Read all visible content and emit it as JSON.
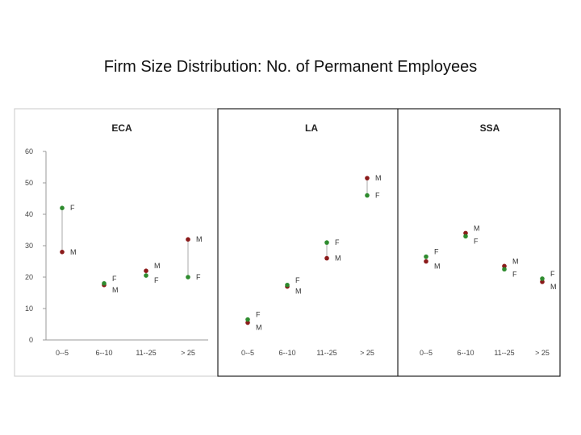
{
  "slide_title": "Firm Size Distribution: No. of Permanent Employees",
  "chart_data": {
    "type": "scatter",
    "ylim": [
      0,
      60
    ],
    "y_ticks": [
      0,
      10,
      20,
      30,
      40,
      50,
      60
    ],
    "categories": [
      "0--5",
      "6--10",
      "11--25",
      "> 25"
    ],
    "category_tick_labels": {
      "ECA": [
        "0--5",
        "6--10",
        "11--25",
        "> 25"
      ],
      "LA": [
        "0--5",
        "6--10",
        "11--25",
        "> 25"
      ],
      "SSA": [
        "0--5",
        "6--10",
        "11--25",
        "> 25"
      ]
    },
    "colors": {
      "M": "#8b1a1a",
      "F": "#2e8b2e"
    },
    "panels": [
      {
        "title": "ECA",
        "series": [
          {
            "name": "M",
            "values": [
              28,
              17.5,
              22,
              32
            ]
          },
          {
            "name": "F",
            "values": [
              42,
              18,
              20.5,
              20
            ]
          }
        ]
      },
      {
        "title": "LA",
        "series": [
          {
            "name": "M",
            "values": [
              5.5,
              17,
              26,
              51.5
            ]
          },
          {
            "name": "F",
            "values": [
              6.5,
              17.5,
              31,
              46
            ]
          }
        ]
      },
      {
        "title": "SSA",
        "series": [
          {
            "name": "M",
            "values": [
              25,
              34,
              23.5,
              18.5
            ]
          },
          {
            "name": "F",
            "values": [
              26.5,
              33,
              22.5,
              19.5
            ]
          }
        ]
      }
    ]
  }
}
